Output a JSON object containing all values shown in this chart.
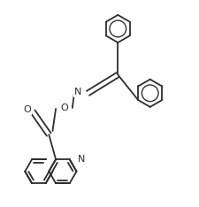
{
  "background": "#ffffff",
  "lc": "#2d2d2d",
  "lw": 1.3,
  "fs": 8.0,
  "R": 0.3,
  "xlim": [
    -0.5,
    3.8
  ],
  "ylim": [
    -2.6,
    2.8
  ]
}
